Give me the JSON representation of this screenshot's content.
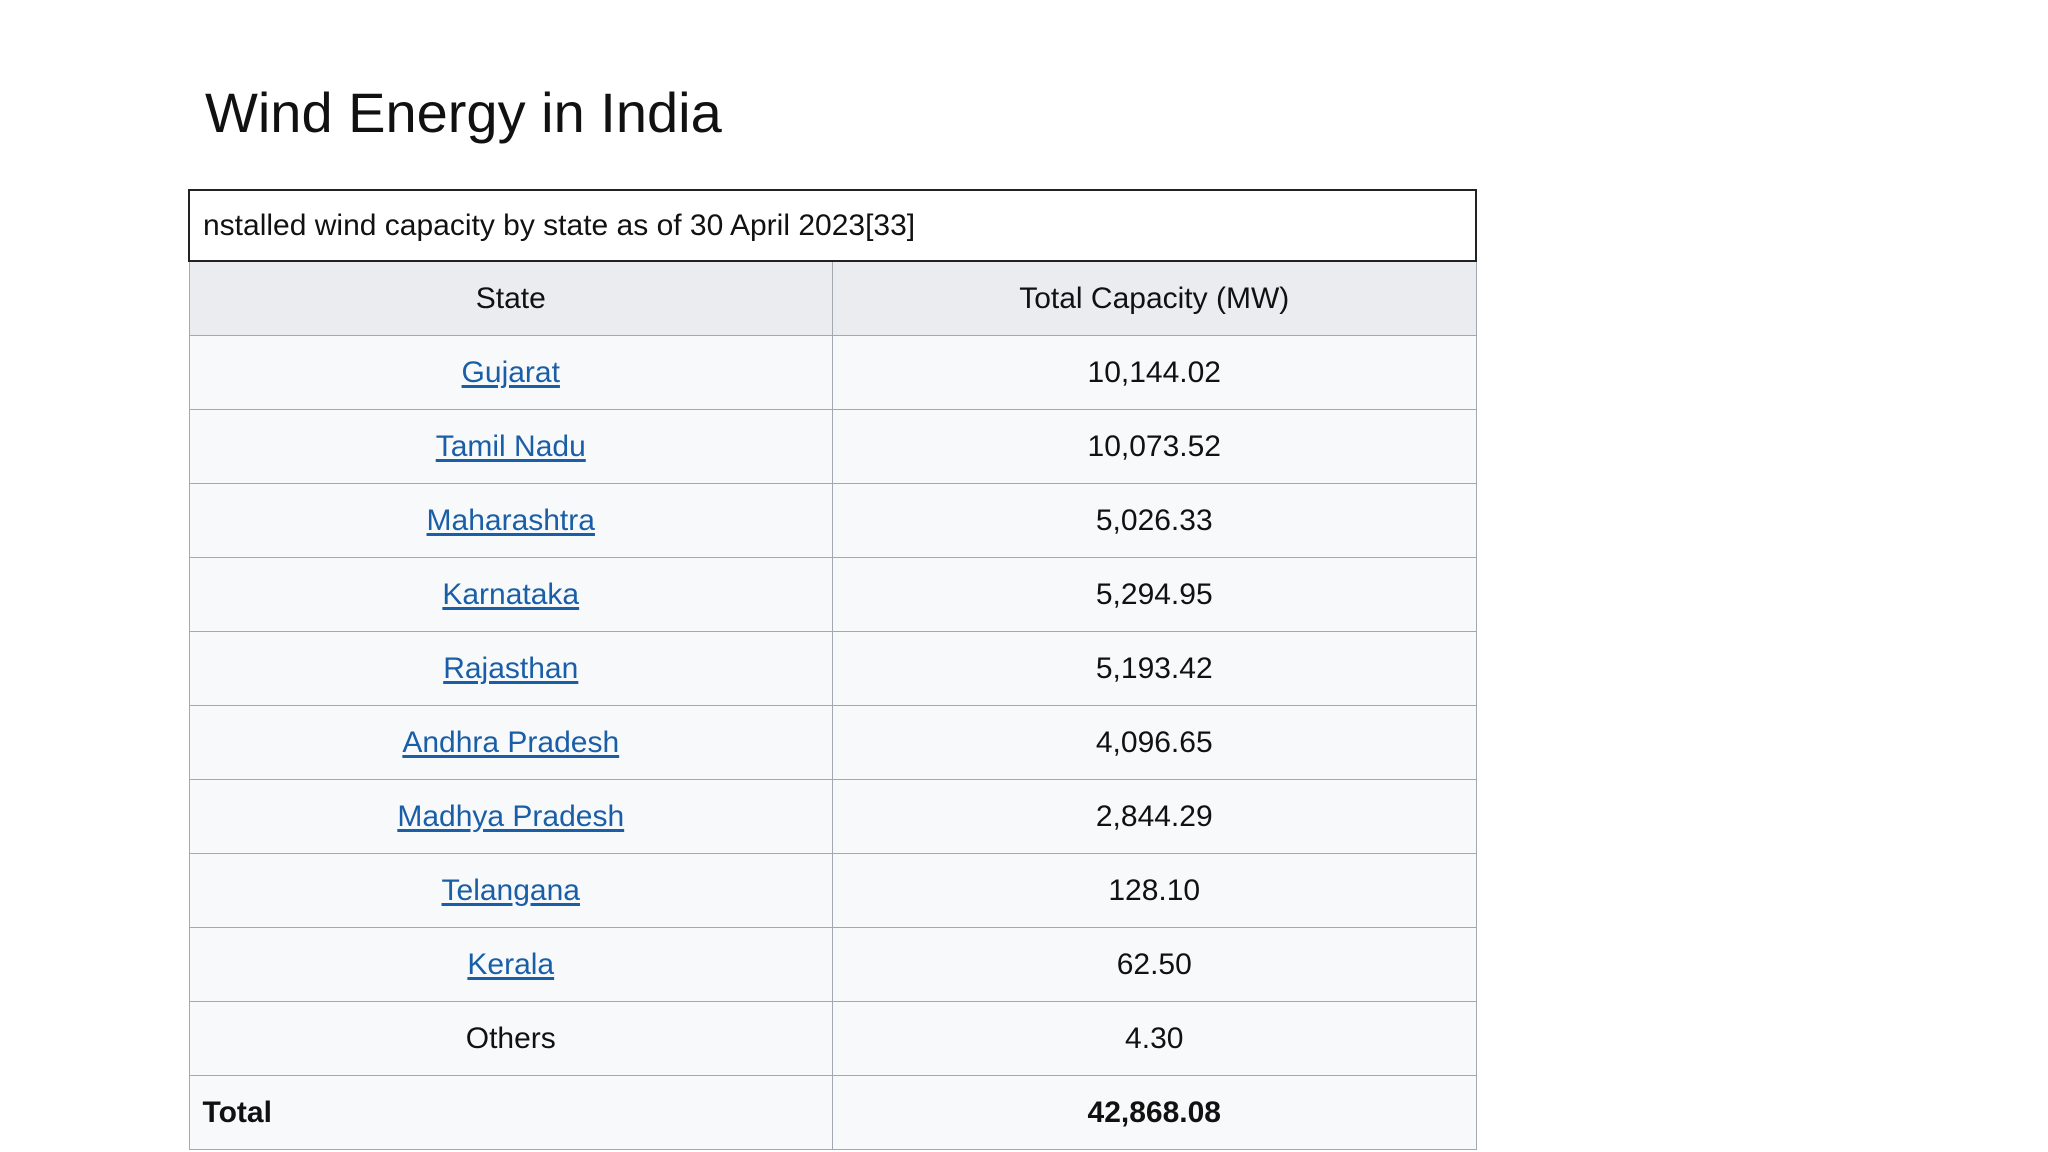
{
  "slide": {
    "title": "Wind Energy in India"
  },
  "table": {
    "caption": "nstalled wind capacity by state as of 30 April 2023[33]",
    "headers": {
      "state": "State",
      "capacity": "Total Capacity (MW)"
    },
    "rows": [
      {
        "state": "Gujarat",
        "capacity": "10,144.02",
        "link": true
      },
      {
        "state": "Tamil Nadu",
        "capacity": "10,073.52",
        "link": true
      },
      {
        "state": "Maharashtra",
        "capacity": "5,026.33",
        "link": true
      },
      {
        "state": "Karnataka",
        "capacity": "5,294.95",
        "link": true
      },
      {
        "state": "Rajasthan",
        "capacity": "5,193.42",
        "link": true
      },
      {
        "state": "Andhra Pradesh",
        "capacity": "4,096.65",
        "link": true
      },
      {
        "state": "Madhya Pradesh",
        "capacity": "2,844.29",
        "link": true
      },
      {
        "state": "Telangana",
        "capacity": "128.10",
        "link": true
      },
      {
        "state": "Kerala",
        "capacity": "62.50",
        "link": true
      },
      {
        "state": "Others",
        "capacity": "4.30",
        "link": false
      }
    ],
    "total": {
      "label": "Total",
      "capacity": "42,868.08"
    }
  },
  "colors": {
    "link": "#1a5ea8",
    "header_bg": "#eaecf0",
    "cell_bg": "#f8f9fa",
    "border": "#a2a9b1"
  }
}
